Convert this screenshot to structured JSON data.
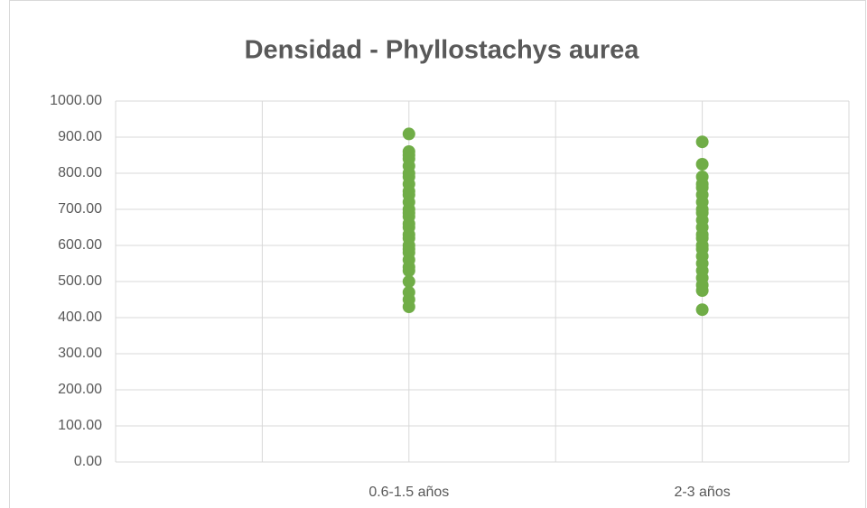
{
  "chart_data": {
    "type": "scatter",
    "title": "Densidad - Phyllostachys aurea",
    "categories": [
      null,
      "0.6-1.5 años",
      null,
      "2-3 años",
      null
    ],
    "xlim": [
      0,
      5
    ],
    "ylim": [
      0,
      1000
    ],
    "yticks": [
      {
        "value": 0,
        "label": "0.00"
      },
      {
        "value": 100,
        "label": "100.00"
      },
      {
        "value": 200,
        "label": "200.00"
      },
      {
        "value": 300,
        "label": "300.00"
      },
      {
        "value": 400,
        "label": "400.00"
      },
      {
        "value": 500,
        "label": "500.00"
      },
      {
        "value": 600,
        "label": "600.00"
      },
      {
        "value": 700,
        "label": "700.00"
      },
      {
        "value": 800,
        "label": "800.00"
      },
      {
        "value": 900,
        "label": "900.00"
      },
      {
        "value": 1000,
        "label": "1000.00"
      }
    ],
    "grid": true,
    "series": [
      {
        "color": "#70ad47",
        "x": [
          2,
          2,
          2,
          2,
          2,
          2,
          2,
          2,
          2,
          2,
          2,
          2,
          2,
          2,
          2,
          2,
          2,
          2,
          2,
          2,
          2,
          2,
          2,
          2,
          2,
          2,
          2,
          2,
          4,
          4,
          4,
          4,
          4,
          4,
          4,
          4,
          4,
          4,
          4,
          4,
          4,
          4,
          4,
          4,
          4,
          4,
          4,
          4,
          4,
          4
        ],
        "y": [
          909,
          860,
          850,
          840,
          820,
          800,
          790,
          770,
          750,
          740,
          720,
          700,
          690,
          680,
          660,
          650,
          630,
          620,
          600,
          590,
          580,
          560,
          540,
          530,
          500,
          470,
          450,
          430,
          887,
          825,
          790,
          770,
          760,
          740,
          720,
          700,
          690,
          670,
          650,
          630,
          620,
          600,
          590,
          570,
          550,
          530,
          510,
          490,
          475,
          422
        ]
      }
    ]
  }
}
